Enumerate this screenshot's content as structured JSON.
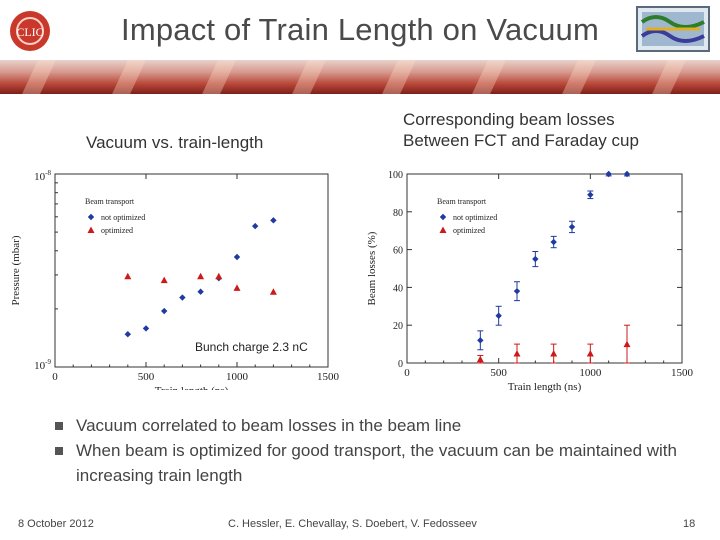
{
  "slide": {
    "title": "Impact of Train Length on Vacuum",
    "left_logo_text": "CLIC",
    "subtitle_left": "Vacuum vs. train-length",
    "subtitle_right_line1": "Corresponding beam losses",
    "subtitle_right_line2": "Between FCT and Faraday cup",
    "note": "Bunch charge 2.3 nC",
    "bullets": [
      "Vacuum correlated to beam losses in the beam line",
      "When beam is optimized for good transport, the vacuum can be maintained with increasing train length"
    ],
    "footer_date": "8 October 2012",
    "footer_authors": "C. Hessler, E. Chevallay, S. Doebert, V. Fedosseev",
    "page_number": "18"
  },
  "colors": {
    "not_optimized": "#1f3aa0",
    "optimized": "#cc1a1a",
    "title": "#4a4a4a"
  },
  "chart_data": [
    {
      "type": "scatter",
      "xlabel": "Train length (ns)",
      "ylabel": "Pressure (mbar)",
      "xlim": [
        0,
        1500
      ],
      "x_ticks": [
        "0",
        "500",
        "1000",
        "1500"
      ],
      "y_ticks": [
        "10^-9",
        "10^-8"
      ],
      "legend_title": "Beam transport",
      "legend_position": "top-left",
      "series": [
        {
          "name": "not optimized",
          "marker": "diamond",
          "points": [
            [
              400,
              0.17
            ],
            [
              500,
              0.2
            ],
            [
              600,
              0.29
            ],
            [
              700,
              0.36
            ],
            [
              800,
              0.39
            ],
            [
              900,
              0.46
            ],
            [
              1000,
              0.57
            ],
            [
              1100,
              0.73
            ],
            [
              1200,
              0.76
            ]
          ]
        },
        {
          "name": "optimized",
          "marker": "triangle",
          "points": [
            [
              400,
              0.47
            ],
            [
              600,
              0.45
            ],
            [
              800,
              0.47
            ],
            [
              900,
              0.47
            ],
            [
              1000,
              0.41
            ],
            [
              1200,
              0.39
            ]
          ]
        }
      ]
    },
    {
      "type": "scatter",
      "xlabel": "Train length (ns)",
      "ylabel": "Beam losses (%)",
      "xlim": [
        0,
        1500
      ],
      "ylim": [
        0,
        100
      ],
      "x_ticks": [
        "0",
        "500",
        "1000",
        "1500"
      ],
      "y_ticks": [
        "0",
        "20",
        "40",
        "60",
        "80",
        "100"
      ],
      "legend_title": "Beam transport",
      "legend_position": "top-left",
      "series": [
        {
          "name": "not optimized",
          "marker": "diamond",
          "points": [
            [
              400,
              12,
              5
            ],
            [
              500,
              25,
              5
            ],
            [
              600,
              38,
              5
            ],
            [
              700,
              55,
              4
            ],
            [
              800,
              64,
              3
            ],
            [
              900,
              72,
              3
            ],
            [
              1000,
              89,
              2
            ],
            [
              1100,
              100,
              1
            ],
            [
              1200,
              100,
              1
            ]
          ]
        },
        {
          "name": "optimized",
          "marker": "triangle",
          "points": [
            [
              400,
              2,
              2
            ],
            [
              600,
              5,
              5
            ],
            [
              800,
              5,
              5
            ],
            [
              1000,
              5,
              5
            ],
            [
              1200,
              10,
              10
            ]
          ]
        }
      ]
    }
  ]
}
